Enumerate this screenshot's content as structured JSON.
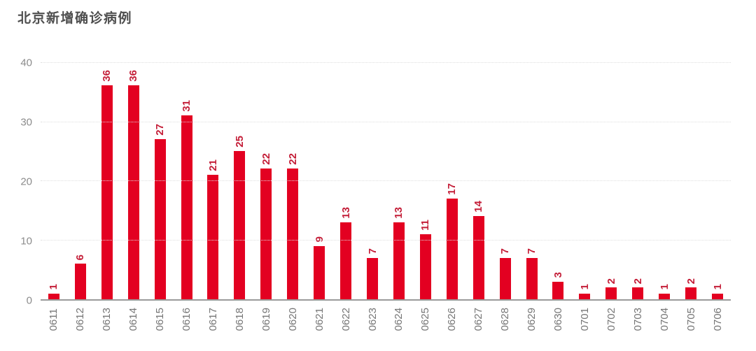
{
  "title": "北京新增确诊病例",
  "colors": {
    "bar": "#e30021",
    "value_label": "#c41e38",
    "title": "#4f4f4f",
    "y_tick_label": "#8c8c8c",
    "x_tick_label": "#757575",
    "gridline": "#dedede",
    "baseline": "#9a9a9a",
    "background": "#ffffff"
  },
  "chart_data": {
    "type": "bar",
    "title": "北京新增确诊病例",
    "categories": [
      "0611",
      "0612",
      "0613",
      "0614",
      "0615",
      "0616",
      "0617",
      "0618",
      "0619",
      "0620",
      "0621",
      "0622",
      "0623",
      "0624",
      "0625",
      "0626",
      "0627",
      "0628",
      "0629",
      "0630",
      "0701",
      "0702",
      "0703",
      "0704",
      "0705",
      "0706"
    ],
    "values": [
      1,
      6,
      36,
      36,
      27,
      31,
      21,
      25,
      22,
      22,
      9,
      13,
      7,
      13,
      11,
      17,
      14,
      7,
      7,
      3,
      1,
      2,
      2,
      1,
      2,
      1
    ],
    "xlabel": "",
    "ylabel": "",
    "ylim": [
      0,
      40
    ],
    "yticks": [
      0,
      10,
      20,
      30,
      40
    ],
    "grid": true,
    "gridline_style": "dotted",
    "legend": "none",
    "bar_value_labels_rotated": true,
    "x_tick_labels_rotated": true
  }
}
